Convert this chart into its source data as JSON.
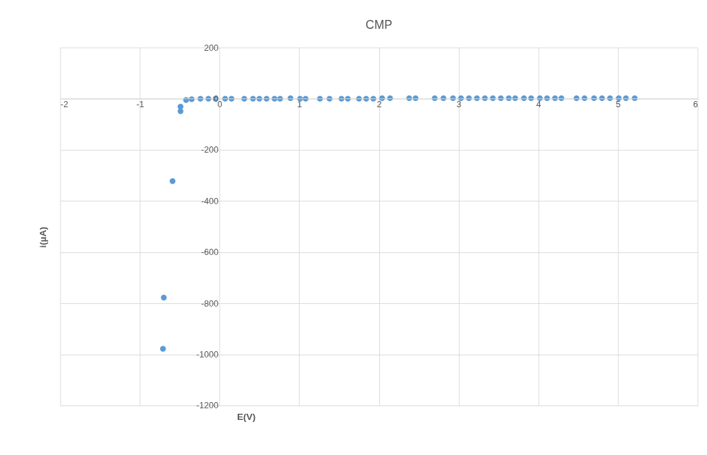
{
  "chart_data": {
    "type": "scatter",
    "title": "CMP",
    "xlabel": "E(V)",
    "ylabel": "i(µA)",
    "xlim": [
      -2,
      6
    ],
    "xticks": [
      -2,
      -1,
      0,
      1,
      2,
      3,
      4,
      5,
      6
    ],
    "ylim": [
      -1200,
      200
    ],
    "yticks": [
      -1200,
      -1000,
      -800,
      -600,
      -400,
      -200,
      0,
      200
    ],
    "grid": true,
    "legend": false,
    "marker": "circle",
    "series": [
      {
        "color": "#5b9bd5",
        "x": [
          -0.71,
          -0.7,
          -0.59,
          -0.49,
          -0.49,
          -0.42,
          -0.35,
          -0.24,
          -0.14,
          -0.05,
          0.07,
          0.15,
          0.31,
          0.42,
          0.5,
          0.59,
          0.69,
          0.76,
          0.89,
          1.01,
          1.08,
          1.26,
          1.38,
          1.53,
          1.61,
          1.75,
          1.84,
          1.93,
          2.04,
          2.14,
          2.38,
          2.46,
          2.7,
          2.81,
          2.93,
          3.03,
          3.13,
          3.23,
          3.33,
          3.43,
          3.53,
          3.63,
          3.71,
          3.82,
          3.91,
          4.02,
          4.11,
          4.21,
          4.29,
          4.48,
          4.58,
          4.7,
          4.8,
          4.9,
          5.01,
          5.1,
          5.21
        ],
        "values": [
          -978,
          -778,
          -322,
          -49,
          -31,
          -5,
          -2,
          0,
          0,
          0,
          0,
          0,
          0,
          0,
          0,
          0,
          0,
          0,
          2,
          0,
          0,
          0,
          0,
          0,
          0,
          0,
          0,
          0,
          2,
          2,
          2,
          2,
          2,
          2,
          2,
          2,
          2,
          2,
          2,
          2,
          2,
          2,
          2,
          2,
          2,
          2,
          2,
          2,
          2,
          2,
          2,
          2,
          2,
          2,
          2,
          2,
          2
        ]
      }
    ]
  }
}
